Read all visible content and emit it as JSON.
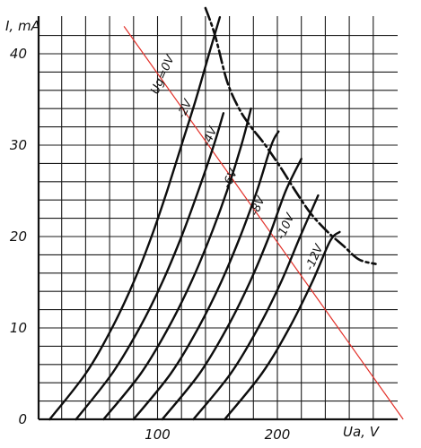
{
  "chart_data": {
    "type": "line",
    "title": "",
    "xlabel": "Ua, V",
    "ylabel": "I, mA",
    "xlim": [
      0,
      280
    ],
    "ylim": [
      0,
      45
    ],
    "x_ticks": [
      100,
      200
    ],
    "y_ticks": [
      0,
      10,
      20,
      30,
      40
    ],
    "grid": true,
    "series": [
      {
        "name": "Ug=0V",
        "points": [
          [
            10,
            0
          ],
          [
            40,
            5
          ],
          [
            62,
            10
          ],
          [
            80,
            15
          ],
          [
            95,
            20
          ],
          [
            108,
            25
          ],
          [
            120,
            30
          ],
          [
            132,
            35
          ],
          [
            143,
            40
          ],
          [
            152,
            44
          ]
        ]
      },
      {
        "name": "-2V",
        "points": [
          [
            32,
            0
          ],
          [
            62,
            5
          ],
          [
            85,
            10
          ],
          [
            104,
            15
          ],
          [
            120,
            20
          ],
          [
            134,
            25
          ],
          [
            147,
            30
          ],
          [
            155,
            33.5
          ]
        ]
      },
      {
        "name": "-4V",
        "points": [
          [
            55,
            0
          ],
          [
            86,
            5
          ],
          [
            109,
            10
          ],
          [
            128,
            15
          ],
          [
            144,
            20
          ],
          [
            158,
            25
          ],
          [
            170,
            30
          ],
          [
            178,
            34
          ]
        ]
      },
      {
        "name": "-6V",
        "points": [
          [
            80,
            0
          ],
          [
            111,
            5
          ],
          [
            134,
            10
          ],
          [
            153,
            15
          ],
          [
            169,
            20
          ],
          [
            183,
            25
          ],
          [
            195,
            30
          ],
          [
            201,
            31.5
          ]
        ]
      },
      {
        "name": "-8V",
        "points": [
          [
            104,
            0
          ],
          [
            135,
            5
          ],
          [
            158,
            10
          ],
          [
            177,
            15
          ],
          [
            193,
            20
          ],
          [
            207,
            25
          ],
          [
            220,
            28.5
          ]
        ]
      },
      {
        "name": "-10V",
        "points": [
          [
            130,
            0
          ],
          [
            161,
            5
          ],
          [
            184,
            10
          ],
          [
            203,
            15
          ],
          [
            219,
            20
          ],
          [
            234,
            24.5
          ]
        ]
      },
      {
        "name": "-12V",
        "points": [
          [
            156,
            0
          ],
          [
            187,
            5
          ],
          [
            210,
            10
          ],
          [
            229,
            15
          ],
          [
            244,
            19.5
          ],
          [
            252,
            20.5
          ]
        ]
      }
    ],
    "curve_labels": [
      "Ug=0V",
      "-2V",
      "-4V",
      "-6V",
      "-8V",
      "-10V",
      "-12V"
    ],
    "envelope_curve": {
      "style": "dash-dot",
      "points": [
        [
          140,
          45
        ],
        [
          148,
          42
        ],
        [
          158,
          37
        ],
        [
          168,
          34
        ],
        [
          178,
          32
        ],
        [
          190,
          30
        ],
        [
          203,
          27.5
        ],
        [
          215,
          25
        ],
        [
          228,
          22.5
        ],
        [
          242,
          20.5
        ],
        [
          255,
          19
        ],
        [
          268,
          17.5
        ],
        [
          282,
          17
        ]
      ]
    },
    "load_line": {
      "color": "#e3322b",
      "points": [
        [
          72,
          43
        ],
        [
          305,
          0
        ]
      ]
    }
  }
}
